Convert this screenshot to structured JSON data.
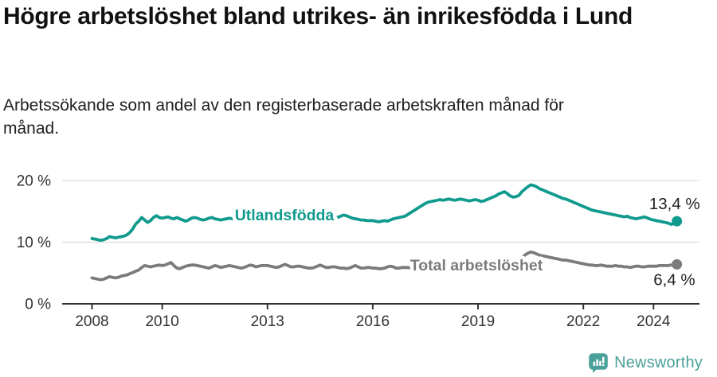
{
  "header": {
    "title": "Högre arbetslöshet bland utrikes- än inrikesfödda i Lund",
    "subtitle": "Arbetssökande som andel av den registerbaserade arbetskraften månad för månad."
  },
  "footer": {
    "brand": "Newsworthy"
  },
  "colors": {
    "series_foreign_born": "#119a8e",
    "series_total": "#7b7b7b",
    "grid": "#dcdcdc",
    "axis": "#333333",
    "tick_text": "#333333",
    "value_label_text": "#222222",
    "logo_teal": "#4aa09b"
  },
  "chart_data": {
    "type": "line",
    "title": "Högre arbetslöshet bland utrikes- än inrikesfödda i Lund",
    "subtitle": "Arbetssökande som andel av den registerbaserade arbetskraften månad för månad.",
    "x_unit": "month",
    "x_start": "2008-01",
    "x_end": "2024-09",
    "x_tick_years": [
      2008,
      2010,
      2013,
      2016,
      2019,
      2022,
      2024
    ],
    "y_ticks": [
      {
        "value": 0,
        "label": "0 %"
      },
      {
        "value": 10,
        "label": "10 %"
      },
      {
        "value": 20,
        "label": "20 %"
      }
    ],
    "ylim": [
      0,
      22
    ],
    "grid": "horizontal-only",
    "legend_position": "inline-on-line",
    "series": [
      {
        "name": "Utlandsfödda",
        "end_label": "13,4 %",
        "end_value": 13.4,
        "color": "#119a8e",
        "values": [
          10.6,
          10.5,
          10.4,
          10.3,
          10.4,
          10.6,
          10.9,
          10.8,
          10.7,
          10.8,
          10.9,
          11.0,
          11.2,
          11.6,
          12.2,
          13.0,
          13.4,
          14.0,
          13.6,
          13.2,
          13.5,
          14.0,
          14.3,
          14.0,
          13.9,
          14.0,
          14.1,
          13.9,
          13.8,
          14.0,
          13.8,
          13.6,
          13.4,
          13.6,
          13.9,
          14.0,
          13.9,
          13.7,
          13.6,
          13.7,
          13.9,
          14.0,
          13.8,
          13.7,
          13.6,
          13.7,
          13.8,
          13.9,
          13.8,
          13.7,
          13.6,
          13.7,
          13.8,
          13.9,
          14.0,
          13.9,
          13.8,
          13.7,
          13.8,
          13.9,
          13.8,
          13.7,
          13.6,
          13.5,
          13.6,
          13.7,
          13.8,
          13.9,
          13.8,
          13.7,
          13.8,
          13.9,
          13.8,
          13.7,
          13.8,
          13.9,
          14.0,
          14.1,
          14.0,
          13.9,
          13.8,
          13.9,
          14.0,
          14.1,
          14.0,
          14.2,
          14.4,
          14.3,
          14.1,
          13.9,
          13.8,
          13.7,
          13.6,
          13.6,
          13.5,
          13.5,
          13.5,
          13.4,
          13.3,
          13.4,
          13.5,
          13.4,
          13.6,
          13.8,
          13.9,
          14.0,
          14.1,
          14.2,
          14.5,
          14.8,
          15.1,
          15.4,
          15.7,
          16.0,
          16.3,
          16.5,
          16.6,
          16.7,
          16.8,
          16.9,
          16.8,
          16.9,
          17.0,
          16.9,
          16.8,
          16.9,
          17.0,
          16.9,
          16.8,
          16.7,
          16.8,
          16.9,
          16.8,
          16.6,
          16.7,
          16.9,
          17.1,
          17.3,
          17.5,
          17.8,
          18.0,
          18.2,
          17.9,
          17.5,
          17.3,
          17.4,
          17.6,
          18.2,
          18.6,
          19.0,
          19.3,
          19.2,
          19.0,
          18.7,
          18.5,
          18.3,
          18.1,
          17.9,
          17.7,
          17.5,
          17.3,
          17.1,
          17.0,
          16.8,
          16.6,
          16.4,
          16.2,
          16.0,
          15.8,
          15.6,
          15.4,
          15.2,
          15.1,
          15.0,
          14.9,
          14.8,
          14.7,
          14.6,
          14.5,
          14.4,
          14.3,
          14.2,
          14.1,
          14.2,
          14.0,
          13.9,
          13.8,
          13.9,
          14.0,
          14.1,
          13.9,
          13.7,
          13.6,
          13.5,
          13.4,
          13.3,
          13.2,
          13.1,
          12.9,
          13.0,
          13.4
        ]
      },
      {
        "name": "Total arbetslöshet",
        "end_label": "6,4 %",
        "end_value": 6.4,
        "color": "#7b7b7b",
        "values": [
          4.2,
          4.1,
          4.0,
          3.9,
          4.0,
          4.2,
          4.4,
          4.3,
          4.2,
          4.3,
          4.5,
          4.6,
          4.7,
          4.9,
          5.1,
          5.3,
          5.5,
          5.9,
          6.2,
          6.1,
          6.0,
          6.1,
          6.2,
          6.3,
          6.2,
          6.3,
          6.5,
          6.7,
          6.2,
          5.8,
          5.7,
          5.9,
          6.1,
          6.2,
          6.3,
          6.3,
          6.2,
          6.1,
          6.0,
          5.9,
          5.8,
          6.0,
          6.2,
          6.1,
          5.9,
          6.0,
          6.1,
          6.2,
          6.1,
          6.0,
          5.9,
          5.8,
          5.9,
          6.1,
          6.3,
          6.2,
          6.0,
          6.1,
          6.2,
          6.2,
          6.2,
          6.1,
          6.0,
          5.9,
          6.0,
          6.2,
          6.4,
          6.2,
          6.0,
          6.0,
          6.1,
          6.1,
          6.0,
          5.9,
          5.8,
          5.8,
          5.9,
          6.1,
          6.3,
          6.1,
          5.9,
          5.9,
          6.0,
          6.0,
          5.9,
          5.8,
          5.8,
          5.7,
          5.8,
          6.0,
          6.2,
          6.0,
          5.8,
          5.8,
          5.9,
          5.9,
          5.8,
          5.8,
          5.7,
          5.7,
          5.8,
          6.0,
          6.1,
          6.0,
          5.8,
          5.8,
          5.9,
          5.9,
          5.9,
          5.8,
          5.8,
          5.9,
          6.0,
          6.1,
          6.2,
          6.1,
          6.0,
          6.0,
          6.1,
          6.1,
          6.0,
          5.9,
          5.9,
          6.0,
          6.0,
          6.1,
          6.2,
          6.1,
          6.0,
          6.0,
          6.0,
          6.1,
          6.0,
          6.0,
          6.1,
          6.1,
          6.2,
          6.3,
          6.4,
          6.4,
          6.3,
          6.4,
          6.4,
          6.5,
          6.6,
          6.7,
          6.9,
          7.5,
          7.9,
          8.2,
          8.4,
          8.3,
          8.1,
          7.9,
          7.8,
          7.7,
          7.6,
          7.5,
          7.4,
          7.3,
          7.2,
          7.1,
          7.1,
          7.0,
          6.9,
          6.8,
          6.7,
          6.6,
          6.5,
          6.4,
          6.3,
          6.3,
          6.2,
          6.2,
          6.3,
          6.2,
          6.1,
          6.1,
          6.1,
          6.2,
          6.1,
          6.1,
          6.0,
          6.0,
          5.9,
          6.0,
          6.1,
          6.1,
          6.0,
          6.0,
          6.1,
          6.1,
          6.1,
          6.1,
          6.2,
          6.2,
          6.2,
          6.2,
          6.3,
          6.3,
          6.4
        ]
      }
    ]
  }
}
